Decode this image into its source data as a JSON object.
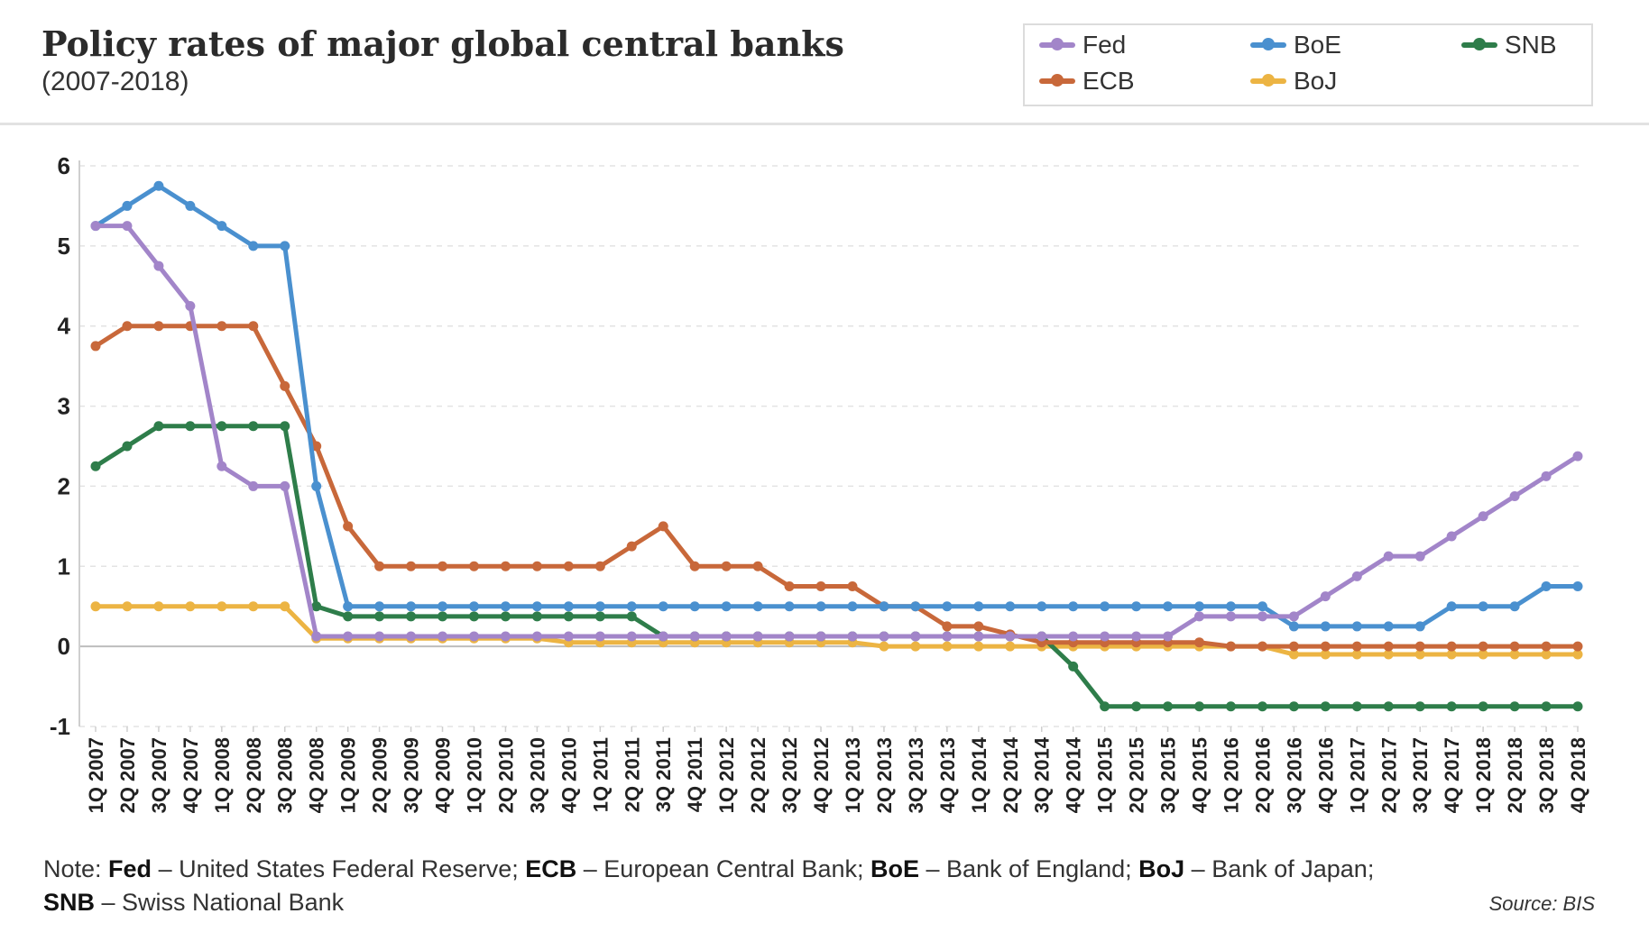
{
  "header": {
    "title": "Policy rates of major global central banks",
    "subtitle": "(2007-2018)"
  },
  "legend": [
    {
      "name": "Fed",
      "color": "#a285c9"
    },
    {
      "name": "BoE",
      "color": "#4a90cf"
    },
    {
      "name": "SNB",
      "color": "#2e7d4a"
    },
    {
      "name": "ECB",
      "color": "#c8683a"
    },
    {
      "name": "BoJ",
      "color": "#ecb443"
    }
  ],
  "note": {
    "prefix": "Note: ",
    "items": [
      {
        "abbr": "Fed",
        "desc": " – United States Federal Reserve; "
      },
      {
        "abbr": "ECB",
        "desc": " – European Central Bank; "
      },
      {
        "abbr": "BoE",
        "desc": " – Bank of England; "
      },
      {
        "abbr": "BoJ",
        "desc": " – Bank of Japan;"
      },
      {
        "abbr": "SNB",
        "desc": " – Swiss National Bank"
      }
    ]
  },
  "source": "Source: BIS",
  "chart_data": {
    "type": "line",
    "title": "Policy rates of major global central banks",
    "subtitle": "(2007-2018)",
    "xlabel": "",
    "ylabel": "",
    "ylim": [
      -1,
      6
    ],
    "yticks": [
      -1,
      0,
      1,
      2,
      3,
      4,
      5,
      6
    ],
    "grid": "horizontal dashed",
    "legend_position": "top-right",
    "x": [
      "1Q 2007",
      "2Q 2007",
      "3Q 2007",
      "4Q 2007",
      "1Q 2008",
      "2Q 2008",
      "3Q 2008",
      "4Q 2008",
      "1Q 2009",
      "2Q 2009",
      "3Q 2009",
      "4Q 2009",
      "1Q 2010",
      "2Q 2010",
      "3Q 2010",
      "4Q 2010",
      "1Q 2011",
      "2Q 2011",
      "3Q 2011",
      "4Q 2011",
      "1Q 2012",
      "2Q 2012",
      "3Q 2012",
      "4Q 2012",
      "1Q 2013",
      "2Q 2013",
      "3Q 2013",
      "4Q 2013",
      "1Q 2014",
      "2Q 2014",
      "3Q 2014",
      "4Q 2014",
      "1Q 2015",
      "2Q 2015",
      "3Q 2015",
      "4Q 2015",
      "1Q 2016",
      "2Q 2016",
      "3Q 2016",
      "4Q 2016",
      "1Q 2017",
      "2Q 2017",
      "3Q 2017",
      "4Q 2017",
      "1Q 2018",
      "2Q 2018",
      "3Q 2018",
      "4Q 2018"
    ],
    "series": [
      {
        "name": "BoJ",
        "color": "#ecb443",
        "values": [
          0.5,
          0.5,
          0.5,
          0.5,
          0.5,
          0.5,
          0.5,
          0.1,
          0.1,
          0.1,
          0.1,
          0.1,
          0.1,
          0.1,
          0.1,
          0.05,
          0.05,
          0.05,
          0.05,
          0.05,
          0.05,
          0.05,
          0.05,
          0.05,
          0.05,
          0,
          0,
          0,
          0,
          0,
          0,
          0,
          0,
          0,
          0,
          0,
          0,
          0,
          -0.1,
          -0.1,
          -0.1,
          -0.1,
          -0.1,
          -0.1,
          -0.1,
          -0.1,
          -0.1,
          -0.1
        ]
      },
      {
        "name": "SNB",
        "color": "#2e7d4a",
        "values": [
          2.25,
          2.5,
          2.75,
          2.75,
          2.75,
          2.75,
          2.75,
          0.5,
          0.375,
          0.375,
          0.375,
          0.375,
          0.375,
          0.375,
          0.375,
          0.375,
          0.375,
          0.375,
          0.125,
          0.125,
          0.125,
          0.125,
          0.125,
          0.125,
          0.125,
          0.125,
          0.125,
          0.125,
          0.125,
          0.125,
          0.125,
          -0.25,
          -0.75,
          -0.75,
          -0.75,
          -0.75,
          -0.75,
          -0.75,
          -0.75,
          -0.75,
          -0.75,
          -0.75,
          -0.75,
          -0.75,
          -0.75,
          -0.75,
          -0.75,
          -0.75
        ]
      },
      {
        "name": "ECB",
        "color": "#c8683a",
        "values": [
          3.75,
          4,
          4,
          4,
          4,
          4,
          3.25,
          2.5,
          1.5,
          1,
          1,
          1,
          1,
          1,
          1,
          1,
          1,
          1.25,
          1.5,
          1,
          1,
          1,
          0.75,
          0.75,
          0.75,
          0.5,
          0.5,
          0.25,
          0.25,
          0.15,
          0.05,
          0.05,
          0.05,
          0.05,
          0.05,
          0.05,
          0,
          0,
          0,
          0,
          0,
          0,
          0,
          0,
          0,
          0,
          0,
          0
        ]
      },
      {
        "name": "BoE",
        "color": "#4a90cf",
        "values": [
          5.25,
          5.5,
          5.75,
          5.5,
          5.25,
          5,
          5,
          2,
          0.5,
          0.5,
          0.5,
          0.5,
          0.5,
          0.5,
          0.5,
          0.5,
          0.5,
          0.5,
          0.5,
          0.5,
          0.5,
          0.5,
          0.5,
          0.5,
          0.5,
          0.5,
          0.5,
          0.5,
          0.5,
          0.5,
          0.5,
          0.5,
          0.5,
          0.5,
          0.5,
          0.5,
          0.5,
          0.5,
          0.25,
          0.25,
          0.25,
          0.25,
          0.25,
          0.5,
          0.5,
          0.5,
          0.75,
          0.75
        ]
      },
      {
        "name": "Fed",
        "color": "#a285c9",
        "values": [
          5.25,
          5.25,
          4.75,
          4.25,
          2.25,
          2,
          2,
          0.125,
          0.125,
          0.125,
          0.125,
          0.125,
          0.125,
          0.125,
          0.125,
          0.125,
          0.125,
          0.125,
          0.125,
          0.125,
          0.125,
          0.125,
          0.125,
          0.125,
          0.125,
          0.125,
          0.125,
          0.125,
          0.125,
          0.125,
          0.125,
          0.125,
          0.125,
          0.125,
          0.125,
          0.375,
          0.375,
          0.375,
          0.375,
          0.625,
          0.875,
          1.125,
          1.125,
          1.375,
          1.625,
          1.875,
          2.125,
          2.375
        ]
      }
    ]
  }
}
